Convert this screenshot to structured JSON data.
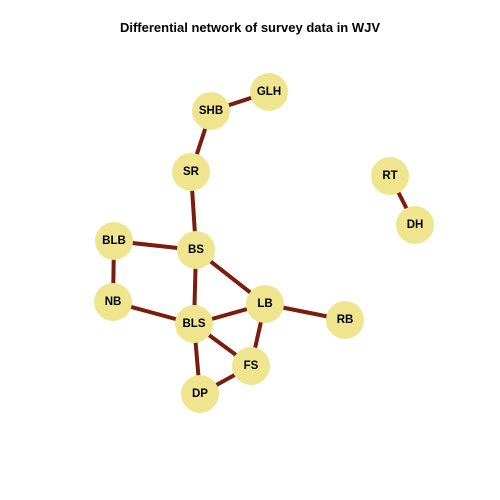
{
  "title": "Differential network of survey data in WJV",
  "colors": {
    "node_fill": "#efe58f",
    "edge": "#7a1d0c",
    "label": "#000000"
  },
  "nodes": [
    {
      "id": "GLH",
      "label": "GLH"
    },
    {
      "id": "SHB",
      "label": "SHB"
    },
    {
      "id": "SR",
      "label": "SR"
    },
    {
      "id": "RT",
      "label": "RT"
    },
    {
      "id": "DH",
      "label": "DH"
    },
    {
      "id": "BLB",
      "label": "BLB"
    },
    {
      "id": "BS",
      "label": "BS"
    },
    {
      "id": "NB",
      "label": "NB"
    },
    {
      "id": "LB",
      "label": "LB"
    },
    {
      "id": "RB",
      "label": "RB"
    },
    {
      "id": "BLS",
      "label": "BLS"
    },
    {
      "id": "FS",
      "label": "FS"
    },
    {
      "id": "DP",
      "label": "DP"
    }
  ],
  "edges": [
    [
      "SHB",
      "GLH"
    ],
    [
      "SHB",
      "SR"
    ],
    [
      "SR",
      "BS"
    ],
    [
      "RT",
      "DH"
    ],
    [
      "BLB",
      "BS"
    ],
    [
      "BLB",
      "NB"
    ],
    [
      "BS",
      "LB"
    ],
    [
      "BS",
      "BLS"
    ],
    [
      "NB",
      "BLS"
    ],
    [
      "BLS",
      "LB"
    ],
    [
      "LB",
      "RB"
    ],
    [
      "LB",
      "FS"
    ],
    [
      "BLS",
      "FS"
    ],
    [
      "BLS",
      "DP"
    ],
    [
      "FS",
      "DP"
    ]
  ]
}
